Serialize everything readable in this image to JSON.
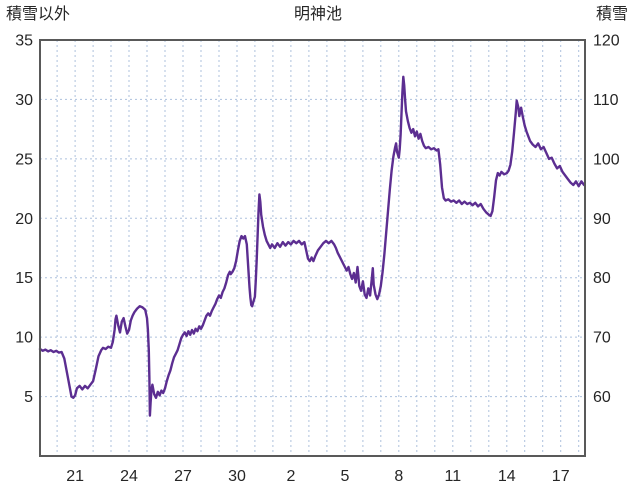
{
  "header": {
    "left_axis_title": "積雪以外",
    "chart_title": "明神池",
    "right_axis_title": "積雪"
  },
  "chart_data": {
    "type": "line",
    "title": "明神池",
    "left_axis_label": "積雪以外",
    "right_axis_label": "積雪",
    "xlim": [
      19.05,
      49.35
    ],
    "left_ylim": [
      0,
      35
    ],
    "right_ylim": [
      50,
      120
    ],
    "left_ticks": [
      35,
      30,
      25,
      20,
      15,
      10,
      5
    ],
    "right_ticks": [
      120,
      110,
      100,
      90,
      80,
      70,
      60
    ],
    "x_ticks": [
      {
        "day": 21,
        "label": "21"
      },
      {
        "day": 24,
        "label": "24"
      },
      {
        "day": 27,
        "label": "27"
      },
      {
        "day": 30,
        "label": "30"
      },
      {
        "day": 33,
        "label": "2"
      },
      {
        "day": 36,
        "label": "5"
      },
      {
        "day": 39,
        "label": "8"
      },
      {
        "day": 42,
        "label": "11"
      },
      {
        "day": 45,
        "label": "14"
      },
      {
        "day": 48,
        "label": "17"
      }
    ],
    "grid": {
      "show": true,
      "style": "dashed",
      "vertical_every_days": 1,
      "horizontal_every_left_units": 5
    },
    "colors": {
      "line": "#5C2E91",
      "grid": "#ADC1DD",
      "border": "#595959",
      "text": "#262626",
      "background": "#FFFFFF"
    },
    "legend": "none",
    "series": [
      {
        "name": "明神池",
        "axis": "left",
        "points": [
          [
            19.05,
            9.0
          ],
          [
            19.2,
            8.85
          ],
          [
            19.35,
            8.95
          ],
          [
            19.5,
            8.8
          ],
          [
            19.65,
            8.9
          ],
          [
            19.8,
            8.75
          ],
          [
            19.95,
            8.85
          ],
          [
            20.1,
            8.7
          ],
          [
            20.25,
            8.75
          ],
          [
            20.4,
            8.2
          ],
          [
            20.55,
            7.0
          ],
          [
            20.7,
            5.8
          ],
          [
            20.8,
            5.0
          ],
          [
            20.9,
            4.9
          ],
          [
            21.0,
            5.1
          ],
          [
            21.1,
            5.7
          ],
          [
            21.25,
            5.9
          ],
          [
            21.4,
            5.6
          ],
          [
            21.55,
            5.9
          ],
          [
            21.7,
            5.7
          ],
          [
            21.85,
            6.0
          ],
          [
            22.0,
            6.3
          ],
          [
            22.15,
            7.3
          ],
          [
            22.3,
            8.4
          ],
          [
            22.45,
            8.9
          ],
          [
            22.55,
            9.1
          ],
          [
            22.7,
            9.0
          ],
          [
            22.85,
            9.2
          ],
          [
            23.0,
            9.1
          ],
          [
            23.1,
            9.6
          ],
          [
            23.2,
            10.6
          ],
          [
            23.25,
            11.5
          ],
          [
            23.3,
            11.8
          ],
          [
            23.4,
            11.0
          ],
          [
            23.5,
            10.4
          ],
          [
            23.6,
            11.3
          ],
          [
            23.7,
            11.6
          ],
          [
            23.8,
            10.9
          ],
          [
            23.9,
            10.3
          ],
          [
            24.0,
            10.6
          ],
          [
            24.1,
            11.4
          ],
          [
            24.2,
            11.8
          ],
          [
            24.3,
            12.1
          ],
          [
            24.45,
            12.4
          ],
          [
            24.6,
            12.6
          ],
          [
            24.75,
            12.5
          ],
          [
            24.9,
            12.3
          ],
          [
            25.0,
            11.6
          ],
          [
            25.05,
            10.6
          ],
          [
            25.1,
            8.9
          ],
          [
            25.13,
            6.5
          ],
          [
            25.16,
            3.4
          ],
          [
            25.2,
            4.5
          ],
          [
            25.25,
            5.6
          ],
          [
            25.3,
            6.0
          ],
          [
            25.4,
            5.2
          ],
          [
            25.5,
            4.9
          ],
          [
            25.6,
            5.4
          ],
          [
            25.7,
            5.1
          ],
          [
            25.8,
            5.5
          ],
          [
            25.9,
            5.3
          ],
          [
            26.0,
            5.7
          ],
          [
            26.1,
            6.3
          ],
          [
            26.2,
            6.8
          ],
          [
            26.3,
            7.2
          ],
          [
            26.4,
            7.8
          ],
          [
            26.5,
            8.3
          ],
          [
            26.6,
            8.6
          ],
          [
            26.7,
            8.9
          ],
          [
            26.8,
            9.4
          ],
          [
            26.9,
            9.9
          ],
          [
            27.0,
            10.2
          ],
          [
            27.1,
            10.4
          ],
          [
            27.2,
            10.1
          ],
          [
            27.3,
            10.5
          ],
          [
            27.4,
            10.2
          ],
          [
            27.5,
            10.6
          ],
          [
            27.6,
            10.3
          ],
          [
            27.7,
            10.7
          ],
          [
            27.8,
            10.5
          ],
          [
            27.9,
            10.9
          ],
          [
            28.0,
            10.7
          ],
          [
            28.1,
            11.0
          ],
          [
            28.2,
            11.4
          ],
          [
            28.3,
            11.8
          ],
          [
            28.4,
            12.0
          ],
          [
            28.5,
            11.8
          ],
          [
            28.6,
            12.2
          ],
          [
            28.7,
            12.5
          ],
          [
            28.8,
            12.8
          ],
          [
            28.9,
            13.2
          ],
          [
            29.0,
            13.5
          ],
          [
            29.1,
            13.3
          ],
          [
            29.2,
            13.8
          ],
          [
            29.3,
            14.1
          ],
          [
            29.4,
            14.6
          ],
          [
            29.5,
            15.2
          ],
          [
            29.6,
            15.5
          ],
          [
            29.65,
            15.3
          ],
          [
            29.75,
            15.5
          ],
          [
            29.85,
            15.8
          ],
          [
            29.95,
            16.4
          ],
          [
            30.05,
            17.3
          ],
          [
            30.15,
            18.1
          ],
          [
            30.25,
            18.5
          ],
          [
            30.35,
            18.3
          ],
          [
            30.45,
            18.5
          ],
          [
            30.55,
            17.8
          ],
          [
            30.6,
            16.6
          ],
          [
            30.65,
            15.4
          ],
          [
            30.7,
            14.2
          ],
          [
            30.75,
            13.3
          ],
          [
            30.8,
            12.7
          ],
          [
            30.85,
            12.6
          ],
          [
            30.9,
            12.9
          ],
          [
            31.0,
            13.4
          ],
          [
            31.05,
            14.8
          ],
          [
            31.1,
            16.5
          ],
          [
            31.15,
            18.5
          ],
          [
            31.2,
            20.5
          ],
          [
            31.25,
            22.0
          ],
          [
            31.3,
            21.4
          ],
          [
            31.35,
            20.3
          ],
          [
            31.45,
            19.3
          ],
          [
            31.55,
            18.6
          ],
          [
            31.65,
            18.1
          ],
          [
            31.75,
            17.8
          ],
          [
            31.85,
            17.5
          ],
          [
            31.95,
            17.8
          ],
          [
            32.1,
            17.5
          ],
          [
            32.25,
            17.9
          ],
          [
            32.4,
            17.6
          ],
          [
            32.55,
            18.0
          ],
          [
            32.7,
            17.7
          ],
          [
            32.85,
            18.0
          ],
          [
            33.0,
            17.8
          ],
          [
            33.15,
            18.1
          ],
          [
            33.3,
            17.9
          ],
          [
            33.45,
            18.1
          ],
          [
            33.6,
            17.8
          ],
          [
            33.75,
            18.0
          ],
          [
            33.85,
            17.3
          ],
          [
            33.95,
            16.6
          ],
          [
            34.05,
            16.4
          ],
          [
            34.15,
            16.7
          ],
          [
            34.25,
            16.4
          ],
          [
            34.35,
            16.8
          ],
          [
            34.5,
            17.3
          ],
          [
            34.65,
            17.6
          ],
          [
            34.8,
            17.9
          ],
          [
            34.95,
            18.1
          ],
          [
            35.1,
            17.9
          ],
          [
            35.25,
            18.1
          ],
          [
            35.4,
            17.8
          ],
          [
            35.5,
            17.5
          ],
          [
            35.6,
            17.1
          ],
          [
            35.7,
            16.8
          ],
          [
            35.8,
            16.5
          ],
          [
            35.9,
            16.2
          ],
          [
            36.0,
            15.9
          ],
          [
            36.1,
            15.6
          ],
          [
            36.2,
            15.9
          ],
          [
            36.3,
            15.3
          ],
          [
            36.4,
            14.9
          ],
          [
            36.5,
            15.4
          ],
          [
            36.6,
            14.6
          ],
          [
            36.7,
            15.9
          ],
          [
            36.8,
            14.3
          ],
          [
            36.9,
            13.9
          ],
          [
            37.0,
            14.7
          ],
          [
            37.1,
            13.6
          ],
          [
            37.2,
            13.3
          ],
          [
            37.3,
            14.1
          ],
          [
            37.4,
            13.5
          ],
          [
            37.5,
            15.0
          ],
          [
            37.55,
            15.8
          ],
          [
            37.6,
            14.4
          ],
          [
            37.7,
            13.6
          ],
          [
            37.8,
            13.2
          ],
          [
            37.9,
            13.6
          ],
          [
            38.0,
            14.3
          ],
          [
            38.1,
            15.5
          ],
          [
            38.2,
            17.0
          ],
          [
            38.3,
            18.8
          ],
          [
            38.4,
            20.6
          ],
          [
            38.5,
            22.4
          ],
          [
            38.6,
            24.0
          ],
          [
            38.7,
            25.2
          ],
          [
            38.8,
            26.0
          ],
          [
            38.85,
            26.3
          ],
          [
            38.9,
            25.6
          ],
          [
            39.0,
            25.1
          ],
          [
            39.05,
            25.8
          ],
          [
            39.1,
            27.0
          ],
          [
            39.15,
            28.8
          ],
          [
            39.2,
            30.6
          ],
          [
            39.25,
            31.9
          ],
          [
            39.3,
            31.2
          ],
          [
            39.35,
            30.0
          ],
          [
            39.4,
            29.0
          ],
          [
            39.5,
            28.2
          ],
          [
            39.6,
            27.6
          ],
          [
            39.7,
            27.2
          ],
          [
            39.8,
            27.5
          ],
          [
            39.9,
            26.9
          ],
          [
            40.0,
            27.3
          ],
          [
            40.1,
            26.7
          ],
          [
            40.2,
            27.1
          ],
          [
            40.3,
            26.5
          ],
          [
            40.4,
            26.1
          ],
          [
            40.5,
            25.9
          ],
          [
            40.65,
            26.0
          ],
          [
            40.8,
            25.8
          ],
          [
            40.95,
            25.9
          ],
          [
            41.1,
            25.7
          ],
          [
            41.2,
            25.8
          ],
          [
            41.3,
            24.5
          ],
          [
            41.4,
            22.6
          ],
          [
            41.5,
            21.7
          ],
          [
            41.6,
            21.5
          ],
          [
            41.75,
            21.6
          ],
          [
            41.9,
            21.4
          ],
          [
            42.05,
            21.5
          ],
          [
            42.2,
            21.3
          ],
          [
            42.35,
            21.5
          ],
          [
            42.5,
            21.2
          ],
          [
            42.65,
            21.4
          ],
          [
            42.8,
            21.2
          ],
          [
            42.95,
            21.3
          ],
          [
            43.1,
            21.1
          ],
          [
            43.25,
            21.3
          ],
          [
            43.4,
            21.0
          ],
          [
            43.55,
            21.2
          ],
          [
            43.7,
            20.8
          ],
          [
            43.85,
            20.5
          ],
          [
            44.0,
            20.3
          ],
          [
            44.1,
            20.2
          ],
          [
            44.2,
            20.6
          ],
          [
            44.3,
            21.8
          ],
          [
            44.4,
            23.2
          ],
          [
            44.5,
            23.8
          ],
          [
            44.6,
            23.6
          ],
          [
            44.7,
            23.9
          ],
          [
            44.85,
            23.7
          ],
          [
            45.0,
            23.8
          ],
          [
            45.1,
            24.0
          ],
          [
            45.2,
            24.5
          ],
          [
            45.3,
            25.6
          ],
          [
            45.4,
            27.2
          ],
          [
            45.5,
            28.9
          ],
          [
            45.55,
            29.9
          ],
          [
            45.65,
            29.3
          ],
          [
            45.7,
            28.6
          ],
          [
            45.8,
            29.3
          ],
          [
            45.9,
            28.5
          ],
          [
            46.0,
            27.8
          ],
          [
            46.1,
            27.3
          ],
          [
            46.2,
            26.9
          ],
          [
            46.3,
            26.5
          ],
          [
            46.45,
            26.2
          ],
          [
            46.6,
            26.0
          ],
          [
            46.75,
            26.3
          ],
          [
            46.9,
            25.8
          ],
          [
            47.05,
            26.0
          ],
          [
            47.2,
            25.5
          ],
          [
            47.35,
            25.0
          ],
          [
            47.5,
            25.1
          ],
          [
            47.65,
            24.6
          ],
          [
            47.8,
            24.2
          ],
          [
            47.95,
            24.4
          ],
          [
            48.1,
            23.9
          ],
          [
            48.25,
            23.6
          ],
          [
            48.4,
            23.3
          ],
          [
            48.55,
            23.0
          ],
          [
            48.7,
            22.8
          ],
          [
            48.85,
            23.1
          ],
          [
            49.0,
            22.7
          ],
          [
            49.15,
            23.1
          ],
          [
            49.3,
            22.8
          ]
        ]
      }
    ]
  }
}
